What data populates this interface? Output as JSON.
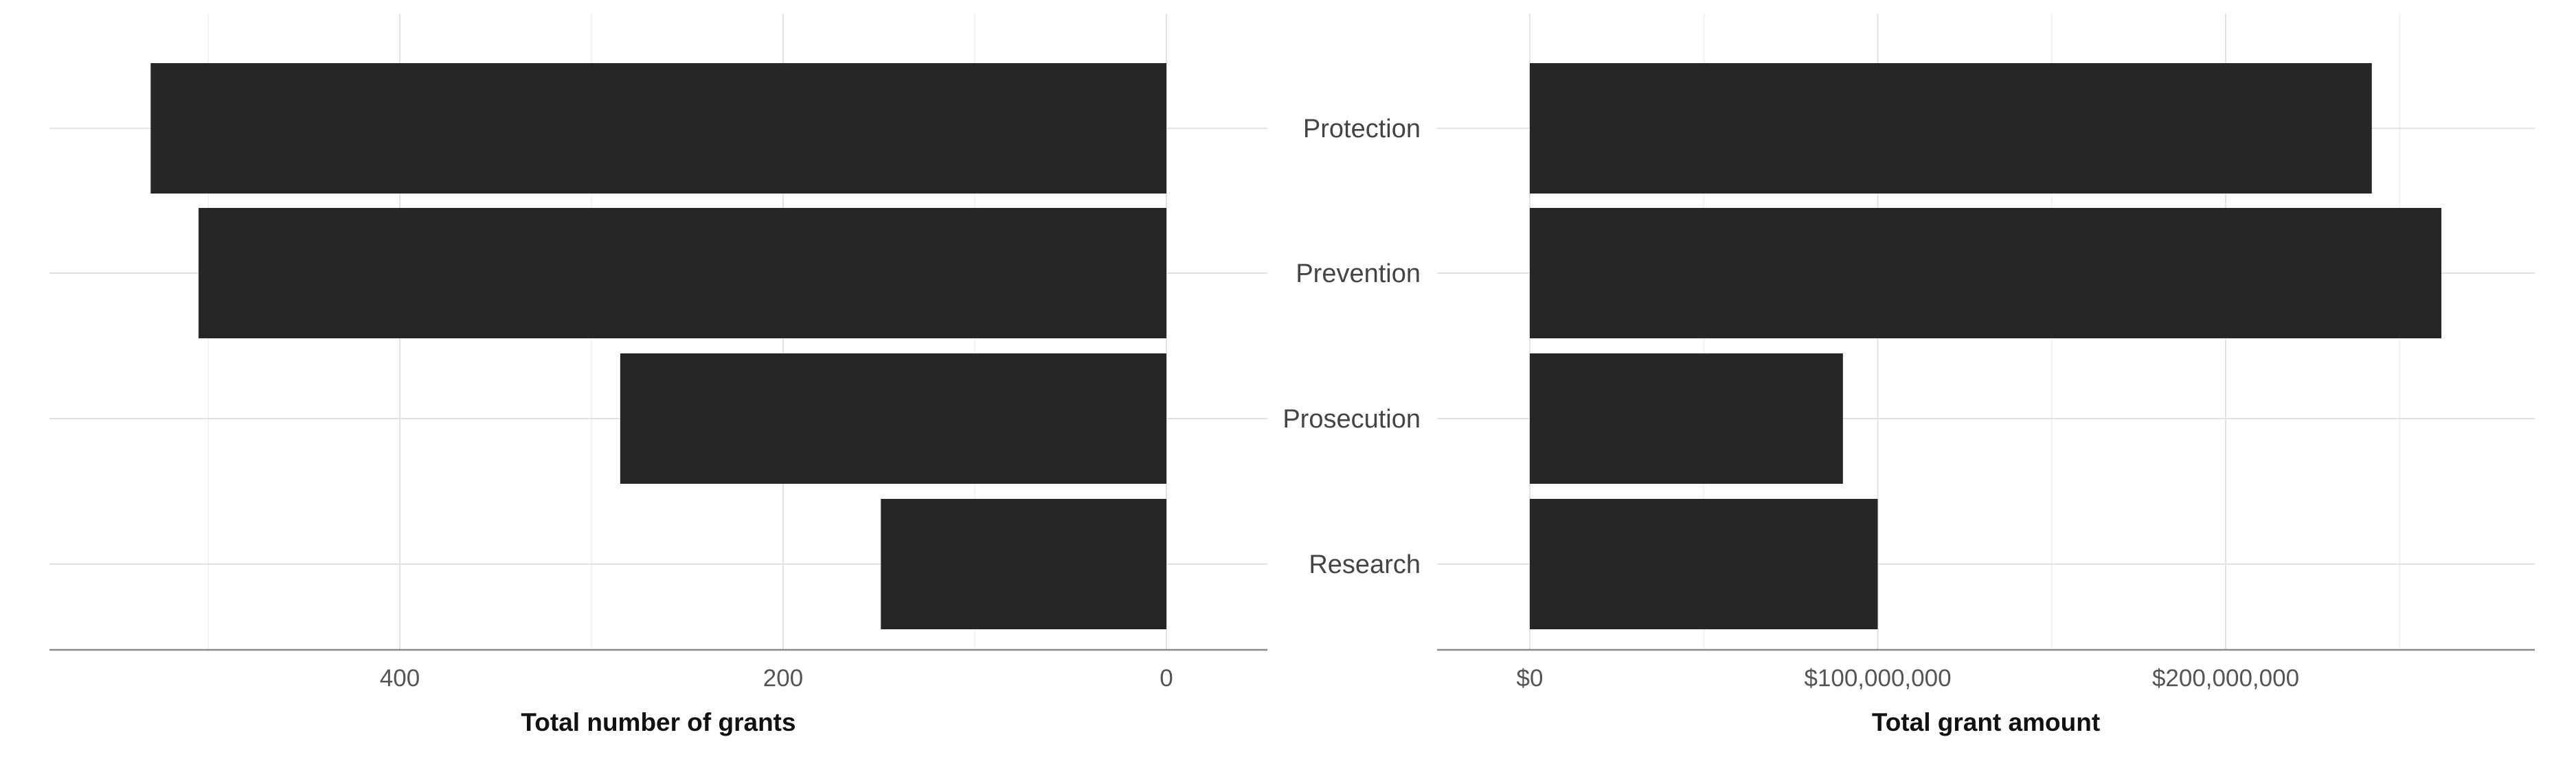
{
  "chart_data": [
    {
      "type": "bar",
      "orientation": "horizontal",
      "x_direction": "reversed",
      "categories": [
        "Protection",
        "Prevention",
        "Prosecution",
        "Research"
      ],
      "values": [
        530,
        505,
        285,
        149
      ],
      "xlabel": "Total number of grants",
      "ylabel": "",
      "xlim": [
        0,
        580
      ],
      "xticks": [
        0,
        200,
        400
      ],
      "tick_labels": [
        "0",
        "200",
        "400"
      ],
      "grid": true,
      "bar_color": "#262626"
    },
    {
      "type": "bar",
      "orientation": "horizontal",
      "categories": [
        "Protection",
        "Prevention",
        "Prosecution",
        "Research"
      ],
      "values": [
        242000000,
        262000000,
        90000000,
        100000000
      ],
      "xlabel": "Total grant amount",
      "ylabel": "",
      "xlim": [
        0,
        289000000
      ],
      "xticks": [
        0,
        100000000,
        200000000
      ],
      "tick_labels": [
        "$0",
        "$100,000,000",
        "$200,000,000"
      ],
      "grid": true,
      "bar_color": "#262626"
    }
  ]
}
